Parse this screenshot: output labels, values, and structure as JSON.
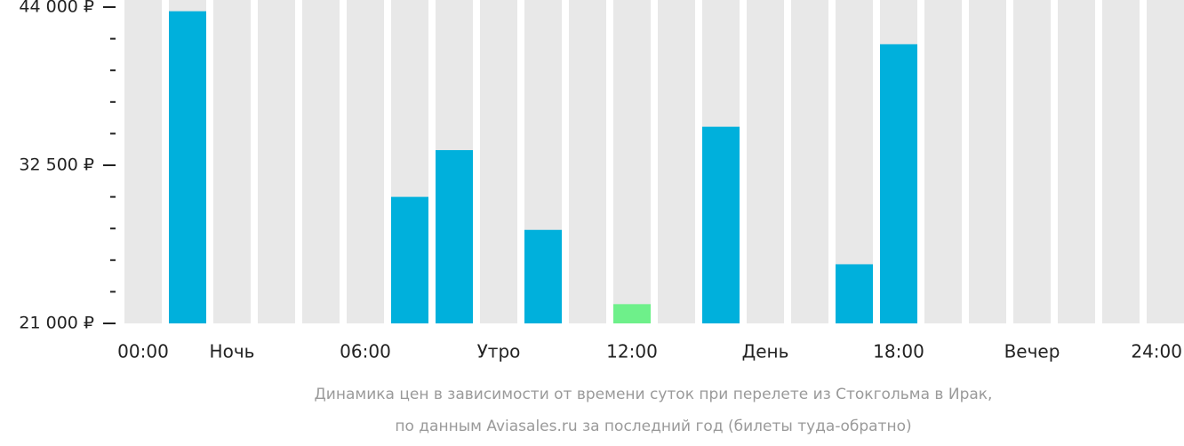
{
  "chart_data": {
    "type": "bar",
    "caption": [
      "Динамика цен в зависимости от времени суток при перелете из Стокгольма в Ирак,",
      "по данным Aviasales.ru за последний год (билеты туда-обратно)"
    ],
    "categories": [
      "00:00",
      null,
      "Ночь",
      null,
      null,
      "06:00",
      null,
      null,
      "Утро",
      null,
      null,
      "12:00",
      null,
      null,
      "День",
      null,
      null,
      "18:00",
      null,
      null,
      "Вечер",
      null,
      null,
      "24:00"
    ],
    "values": [
      null,
      43700,
      null,
      null,
      null,
      null,
      30200,
      33600,
      null,
      27800,
      null,
      22400,
      null,
      35300,
      null,
      null,
      25300,
      41300,
      null,
      null,
      null,
      null,
      null,
      null
    ],
    "colors": [
      null,
      "#00b0dc",
      null,
      null,
      null,
      null,
      "#00b0dc",
      "#00b0dc",
      null,
      "#00b0dc",
      null,
      "#6ef08a",
      null,
      "#00b0dc",
      null,
      null,
      "#00b0dc",
      "#00b0dc",
      null,
      null,
      null,
      null,
      null,
      null
    ],
    "ylim": [
      21000,
      44000
    ],
    "yticks": [
      {
        "value": 21000,
        "label": "21 000 ₽"
      },
      {
        "value": 32500,
        "label": "32 500 ₽"
      },
      {
        "value": 44000,
        "label": "44 000 ₽"
      }
    ],
    "yminorticks": [
      23300,
      25600,
      27900,
      30200,
      34800,
      37100,
      39400,
      41700
    ]
  }
}
